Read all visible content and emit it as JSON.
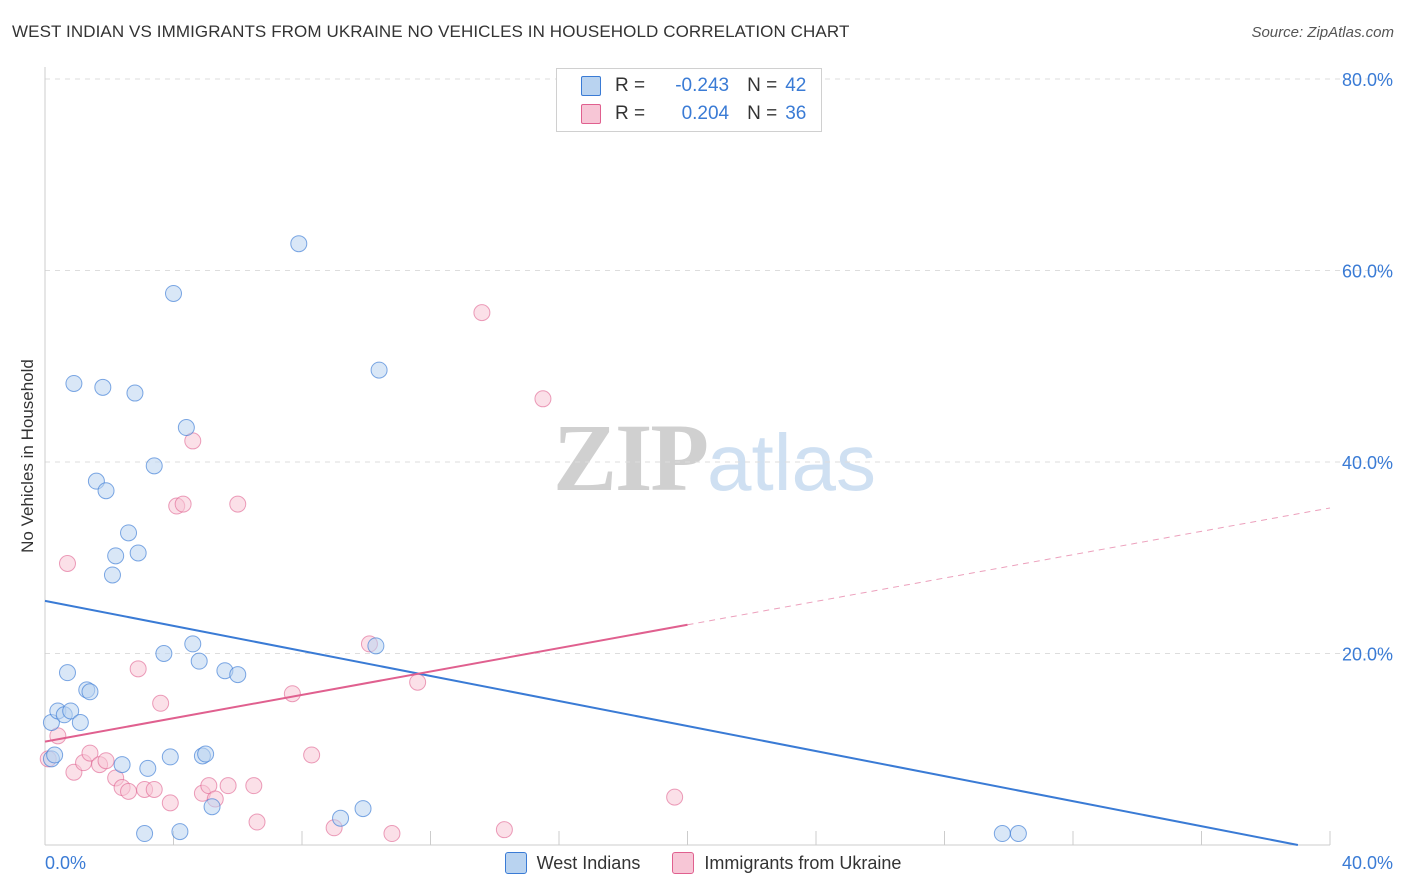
{
  "title": "WEST INDIAN VS IMMIGRANTS FROM UKRAINE NO VEHICLES IN HOUSEHOLD CORRELATION CHART",
  "source": "Source: ZipAtlas.com",
  "watermark": {
    "zip": "ZIP",
    "atlas": "atlas"
  },
  "legend": {
    "r_label": "R =",
    "n_label": "N =",
    "series1": {
      "r": "-0.243",
      "n": "42"
    },
    "series2": {
      "r": "0.204",
      "n": "36"
    }
  },
  "bottom_legend": {
    "series1": "West Indians",
    "series2": "Immigrants from Ukraine"
  },
  "chart_data": {
    "type": "scatter",
    "title": "WEST INDIAN VS IMMIGRANTS FROM UKRAINE NO VEHICLES IN HOUSEHOLD CORRELATION CHART",
    "xlabel": "",
    "ylabel": "No Vehicles in Household",
    "xlim": [
      0,
      40
    ],
    "ylim": [
      0,
      80
    ],
    "x_tick_labels": [
      "0.0%",
      "40.0%"
    ],
    "y_ticks": [
      20,
      40,
      60,
      80
    ],
    "y_tick_labels": [
      "20.0%",
      "40.0%",
      "60.0%",
      "80.0%"
    ],
    "grid": true,
    "colors": {
      "series1": "#3a7bd5",
      "series1_fill": "#b9d3f0",
      "series2": "#e0608f",
      "series2_fill": "#f7c6d6"
    },
    "series": [
      {
        "name": "West Indians",
        "r": -0.243,
        "n": 42,
        "trend": {
          "x": [
            0,
            39
          ],
          "y": [
            25.5,
            0.0
          ]
        },
        "points": [
          [
            0.2,
            9.0
          ],
          [
            0.2,
            12.8
          ],
          [
            0.4,
            14.0
          ],
          [
            0.6,
            13.6
          ],
          [
            0.8,
            14.0
          ],
          [
            0.7,
            18.0
          ],
          [
            0.9,
            48.2
          ],
          [
            1.1,
            12.8
          ],
          [
            1.3,
            16.2
          ],
          [
            1.4,
            16.0
          ],
          [
            1.6,
            38.0
          ],
          [
            1.8,
            47.8
          ],
          [
            1.9,
            37.0
          ],
          [
            2.1,
            28.2
          ],
          [
            2.2,
            30.2
          ],
          [
            2.4,
            8.4
          ],
          [
            2.6,
            32.6
          ],
          [
            2.8,
            47.2
          ],
          [
            2.9,
            30.5
          ],
          [
            3.1,
            1.2
          ],
          [
            3.2,
            8.0
          ],
          [
            3.4,
            39.6
          ],
          [
            3.7,
            20.0
          ],
          [
            3.9,
            9.2
          ],
          [
            4.0,
            57.6
          ],
          [
            4.2,
            1.4
          ],
          [
            4.4,
            43.6
          ],
          [
            4.6,
            21.0
          ],
          [
            4.8,
            19.2
          ],
          [
            4.9,
            9.3
          ],
          [
            5.0,
            9.5
          ],
          [
            5.2,
            4.0
          ],
          [
            5.6,
            18.2
          ],
          [
            6.0,
            17.8
          ],
          [
            7.9,
            62.8
          ],
          [
            9.2,
            2.8
          ],
          [
            9.9,
            3.8
          ],
          [
            10.3,
            20.8
          ],
          [
            10.4,
            49.6
          ],
          [
            29.8,
            1.2
          ],
          [
            30.3,
            1.2
          ],
          [
            0.3,
            9.4
          ]
        ]
      },
      {
        "name": "Immigrants from Ukraine",
        "r": 0.204,
        "n": 36,
        "trend_solid": {
          "x": [
            0,
            20
          ],
          "y": [
            10.8,
            23.0
          ]
        },
        "trend_dashed": {
          "x": [
            20,
            40
          ],
          "y": [
            23.0,
            35.2
          ]
        },
        "points": [
          [
            0.1,
            9.0
          ],
          [
            0.4,
            11.4
          ],
          [
            0.7,
            29.4
          ],
          [
            0.9,
            7.6
          ],
          [
            1.2,
            8.6
          ],
          [
            1.4,
            9.6
          ],
          [
            1.7,
            8.4
          ],
          [
            1.9,
            8.8
          ],
          [
            2.2,
            7.0
          ],
          [
            2.4,
            6.0
          ],
          [
            2.6,
            5.6
          ],
          [
            2.9,
            18.4
          ],
          [
            3.1,
            5.8
          ],
          [
            3.4,
            5.8
          ],
          [
            3.6,
            14.8
          ],
          [
            3.9,
            4.4
          ],
          [
            4.1,
            35.4
          ],
          [
            4.3,
            35.6
          ],
          [
            4.6,
            42.2
          ],
          [
            4.9,
            5.4
          ],
          [
            5.1,
            6.2
          ],
          [
            5.3,
            4.8
          ],
          [
            5.7,
            6.2
          ],
          [
            6.0,
            35.6
          ],
          [
            6.5,
            6.2
          ],
          [
            6.6,
            2.4
          ],
          [
            7.7,
            15.8
          ],
          [
            8.3,
            9.4
          ],
          [
            9.0,
            1.8
          ],
          [
            10.1,
            21.0
          ],
          [
            10.8,
            1.2
          ],
          [
            11.6,
            17.0
          ],
          [
            13.6,
            55.6
          ],
          [
            14.3,
            1.6
          ],
          [
            15.5,
            46.6
          ],
          [
            19.6,
            5.0
          ]
        ]
      }
    ]
  }
}
